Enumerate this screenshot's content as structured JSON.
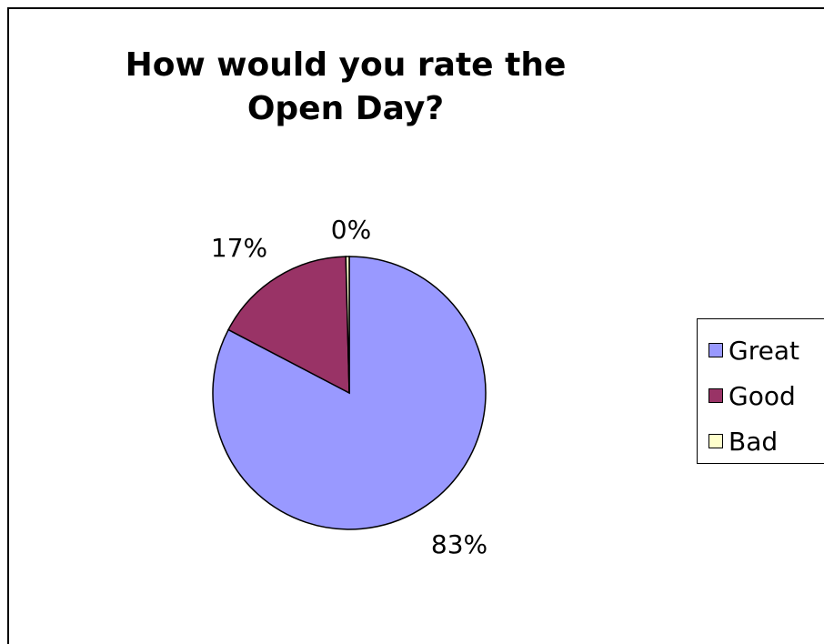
{
  "chart_data": {
    "type": "pie",
    "title": "How would you rate the Open Day?",
    "categories": [
      "Great",
      "Good",
      "Bad"
    ],
    "values": [
      83,
      17,
      0.4
    ],
    "labels": [
      "83%",
      "17%",
      "0%"
    ],
    "colors": [
      "#9999ff",
      "#993366",
      "#ffffcc"
    ],
    "legend_position": "right"
  }
}
